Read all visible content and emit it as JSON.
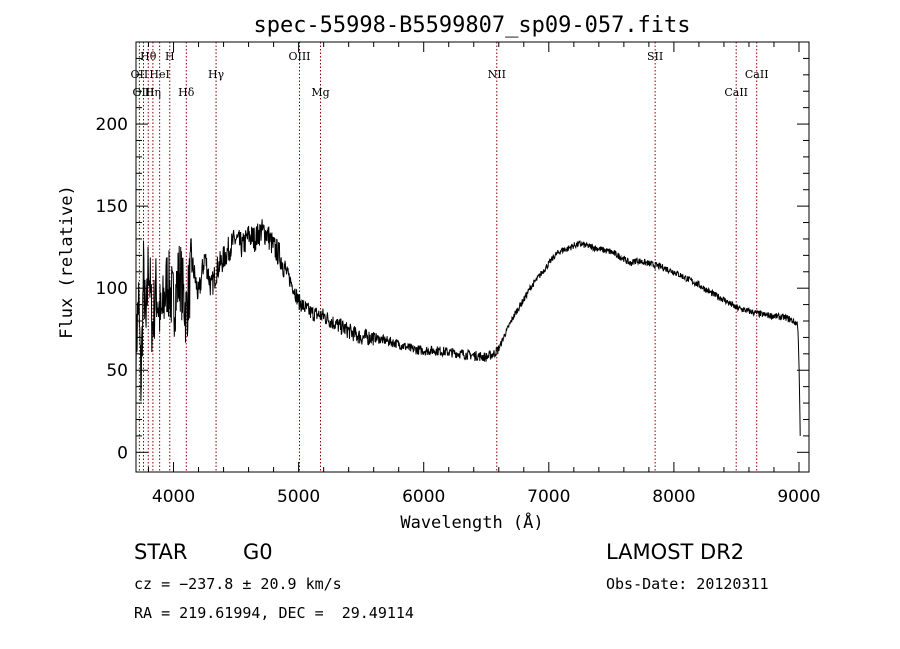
{
  "chart_data": {
    "type": "line",
    "title": "spec-55998-B5599807_sp09-057.fits",
    "xlabel": "Wavelength (Å)",
    "ylabel": "Flux (relative)",
    "xlim": [
      3700,
      9080
    ],
    "ylim": [
      -12,
      250
    ],
    "xticks": [
      4000,
      5000,
      6000,
      7000,
      8000,
      9000
    ],
    "yticks": [
      0,
      50,
      100,
      150,
      200
    ],
    "grid": false,
    "line_color": "#000000",
    "marker_color": "#8b0000",
    "series": [
      {
        "x": [
          3700,
          3720,
          3740,
          3760,
          3780,
          3800,
          3830,
          3860,
          3900,
          3950,
          4000,
          4050,
          4100,
          4150,
          4200,
          4250,
          4300,
          4350,
          4400,
          4450,
          4500,
          4550,
          4600,
          4650,
          4700,
          4750,
          4800,
          4850,
          4900,
          4950,
          5000,
          5050,
          5100,
          5150,
          5200,
          5300,
          5400,
          5500,
          5600,
          5700,
          5800,
          5900,
          6000,
          6100,
          6200,
          6300,
          6400,
          6500,
          6560,
          6600,
          6650,
          6700,
          6750,
          6800,
          6850,
          6900,
          6950,
          7000,
          7050,
          7100,
          7150,
          7200,
          7250,
          7300,
          7400,
          7500,
          7600,
          7650,
          7700,
          7750,
          7800,
          7900,
          8000,
          8100,
          8200,
          8300,
          8400,
          8500,
          8600,
          8700,
          8800,
          8900,
          8950,
          8990,
          9000,
          9010
        ],
        "values": [
          60,
          95,
          40,
          110,
          70,
          120,
          75,
          100,
          80,
          105,
          90,
          110,
          85,
          115,
          95,
          120,
          100,
          112,
          118,
          125,
          130,
          125,
          132,
          130,
          135,
          133,
          125,
          120,
          110,
          102,
          92,
          88,
          85,
          84,
          83,
          78,
          74,
          70,
          70,
          68,
          66,
          63,
          62,
          62,
          61,
          60,
          59,
          58,
          60,
          63,
          72,
          80,
          87,
          93,
          100,
          105,
          110,
          115,
          120,
          123,
          124,
          126,
          127,
          126,
          124,
          122,
          118,
          115,
          117,
          116,
          115,
          113,
          110,
          106,
          102,
          97,
          93,
          88,
          86,
          84,
          83,
          82,
          80,
          78,
          55,
          10
        ]
      }
    ],
    "line_markers": [
      {
        "label": "Hθ",
        "x": 3798,
        "row": 1
      },
      {
        "label": "H",
        "x": 3970,
        "row": 1
      },
      {
        "label": "OIII",
        "x": 5007,
        "row": 1
      },
      {
        "label": "SII",
        "x": 7850,
        "row": 1
      },
      {
        "label": "OII",
        "x": 3727,
        "row": 2
      },
      {
        "label": "HeI",
        "x": 3889,
        "row": 2
      },
      {
        "label": "Hγ",
        "x": 4340,
        "row": 2
      },
      {
        "label": "NII",
        "x": 6584,
        "row": 2
      },
      {
        "label": "CaII",
        "x": 8662,
        "row": 2
      },
      {
        "label": "OIII",
        "x": 3760,
        "row": 3
      },
      {
        "label": "Hη",
        "x": 3835,
        "row": 3
      },
      {
        "label": "Hδ",
        "x": 4102,
        "row": 3
      },
      {
        "label": "Mg",
        "x": 5175,
        "row": 3
      },
      {
        "label": "CaII",
        "x": 8498,
        "row": 3
      }
    ]
  },
  "info": {
    "class_label": "STAR",
    "subclass": "G0",
    "survey": "LAMOST DR2",
    "cz": "cz = −237.8 ± 20.9 km/s",
    "obs_date": "Obs-Date: 20120311",
    "coords": "RA = 219.61994, DEC =  29.49114"
  }
}
